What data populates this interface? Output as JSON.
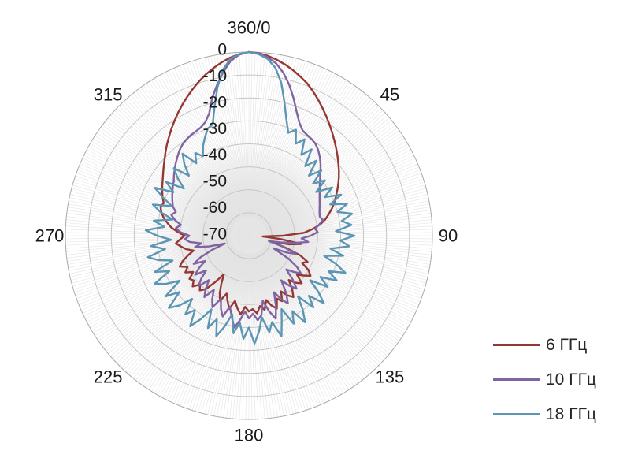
{
  "chart_data": {
    "type": "line",
    "subtype": "polar-radiation-pattern",
    "title": "",
    "angle_unit": "degrees",
    "angle_step": 3,
    "radial_unit": "dB",
    "radial_range": [
      -80,
      0
    ],
    "radial_ticks": [
      "0",
      "-10",
      "-20",
      "-30",
      "-40",
      "-50",
      "-60",
      "-70"
    ],
    "angle_labels": [
      {
        "angle": 0,
        "label": "360/0"
      },
      {
        "angle": 45,
        "label": "45"
      },
      {
        "angle": 90,
        "label": "90"
      },
      {
        "angle": 135,
        "label": "135"
      },
      {
        "angle": 180,
        "label": "180"
      },
      {
        "angle": 225,
        "label": "225"
      },
      {
        "angle": 270,
        "label": "270"
      },
      {
        "angle": 315,
        "label": "315"
      }
    ],
    "grid": {
      "rings": 8,
      "spoke_step_deg": 1,
      "ring_color": "#c6c6c6",
      "outer_ring_color": "#a9a9a9",
      "spoke_color": "rgba(90,90,90,0.16)",
      "center_fill": "#e3e3e3"
    },
    "legend_position": "right",
    "series": [
      {
        "name": "6 ГГц",
        "color": "#953734",
        "values": [
          0,
          -0.4,
          -1.2,
          -2.4,
          -3.8,
          -5.4,
          -7.2,
          -9,
          -11.2,
          -13.5,
          -15.8,
          -18,
          -20.2,
          -22.3,
          -24.3,
          -26.2,
          -28,
          -29.8,
          -31.5,
          -33.2,
          -35,
          -36.8,
          -38.5,
          -40.2,
          -42,
          -44,
          -46,
          -48.5,
          -52,
          -56,
          -65,
          -74,
          -66,
          -57,
          -62,
          -70,
          -63,
          -56,
          -52,
          -54,
          -50,
          -48,
          -50.5,
          -53,
          -49,
          -51,
          -54,
          -50,
          -47,
          -49,
          -52,
          -48,
          -50,
          -46,
          -48,
          -51,
          -47,
          -49,
          -46,
          -48,
          -47,
          -49,
          -45.5,
          -48,
          -51,
          -47,
          -50,
          -53,
          -49,
          -52,
          -56,
          -60,
          -55,
          -50,
          -48,
          -50,
          -47,
          -49,
          -48,
          -51,
          -48,
          -50,
          -47,
          -49,
          -52,
          -55,
          -52,
          -50,
          -48,
          -50,
          -52,
          -49,
          -46,
          -44,
          -42,
          -40.5,
          -39.5,
          -40.2,
          -38.8,
          -37.6,
          -36.4,
          -35.2,
          -33.8,
          -32.2,
          -30.5,
          -28.6,
          -26.6,
          -24.6,
          -22.5,
          -20.4,
          -18.2,
          -16,
          -13.8,
          -11.6,
          -9.4,
          -7.3,
          -5.4,
          -3.6,
          -2,
          -0.8,
          0
        ]
      },
      {
        "name": "10 ГГц",
        "color": "#8064A2",
        "values": [
          0,
          -0.5,
          -1.8,
          -4,
          -7.5,
          -12,
          -17,
          -22,
          -26,
          -28.5,
          -29.3,
          -29.8,
          -30.6,
          -32,
          -33.8,
          -35.8,
          -38,
          -40,
          -41.8,
          -43.2,
          -44.4,
          -45.4,
          -46.2,
          -47,
          -47.6,
          -48,
          -47,
          -49,
          -51,
          -50,
          -53,
          -57,
          -54,
          -60,
          -66,
          -71,
          -64,
          -58,
          -62,
          -68,
          -60,
          -55,
          -52,
          -55,
          -58,
          -53,
          -49,
          -52,
          -56,
          -50,
          -46,
          -49,
          -53,
          -47,
          -42,
          -46,
          -51,
          -45,
          -43,
          -46,
          -44,
          -47,
          -43,
          -39.5,
          -44,
          -48,
          -43,
          -46,
          -50,
          -45,
          -48,
          -52,
          -47,
          -50,
          -54,
          -49,
          -52,
          -56,
          -51,
          -54,
          -58,
          -53,
          -57,
          -63,
          -69,
          -62,
          -56,
          -59,
          -54,
          -52,
          -54,
          -50,
          -48,
          -50,
          -47,
          -45,
          -46.5,
          -44.5,
          -43.5,
          -42.5,
          -41.5,
          -40.5,
          -39.5,
          -38,
          -36.5,
          -35,
          -33.5,
          -32,
          -30.8,
          -30,
          -29.4,
          -29,
          -28.4,
          -27,
          -24,
          -18,
          -13,
          -8,
          -3.5,
          -1,
          0
        ]
      },
      {
        "name": "18 ГГц",
        "color": "#5C96B4",
        "values": [
          0,
          -0.8,
          -2.5,
          -6,
          -12,
          -20,
          -27,
          -32,
          -29.5,
          -35,
          -31.5,
          -38,
          -33.5,
          -41,
          -36,
          -43,
          -37.5,
          -44,
          -39,
          -45,
          -38,
          -43,
          -36,
          -42,
          -35,
          -40,
          -34,
          -39,
          -35,
          -42,
          -34,
          -40,
          -36,
          -44,
          -38,
          -46,
          -40,
          -35,
          -42,
          -37,
          -44,
          -39,
          -47,
          -41,
          -36,
          -43,
          -38,
          -46,
          -40,
          -35,
          -42,
          -37,
          -45,
          -40,
          -34,
          -41,
          -37,
          -44,
          -38,
          -33,
          -40,
          -35,
          -42,
          -37,
          -45,
          -39,
          -34,
          -41,
          -36,
          -44,
          -38,
          -33,
          -40,
          -36,
          -43,
          -37,
          -33,
          -41,
          -35,
          -44,
          -38,
          -34,
          -42,
          -36,
          -45,
          -39,
          -35,
          -43,
          -37,
          -46,
          -40,
          -35,
          -43,
          -38,
          -46,
          -40,
          -36,
          -44,
          -39,
          -34,
          -42,
          -37,
          -45,
          -40,
          -36,
          -43,
          -38,
          -34,
          -41,
          -37,
          -40,
          -36,
          -33,
          -30,
          -29,
          -22,
          -14,
          -7,
          -2.5,
          -0.8,
          0
        ]
      }
    ]
  },
  "legend": {
    "items": [
      "6 ГГц",
      "10 ГГц",
      "18 ГГц"
    ]
  }
}
